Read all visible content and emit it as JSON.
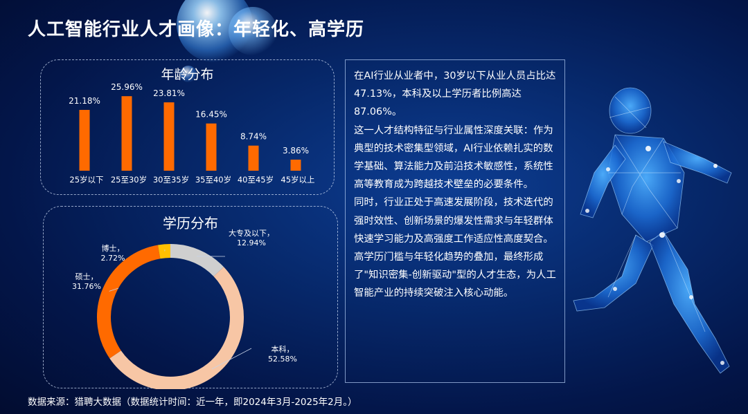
{
  "title": "人工智能行业人才画像：年轻化、高学历",
  "age_panel_title": "年龄分布",
  "edu_panel_title": "学历分布",
  "chart_data": [
    {
      "type": "bar",
      "title": "年龄分布",
      "categories": [
        "25岁以下",
        "25至30岁",
        "30至35岁",
        "35至40岁",
        "40至45岁",
        "45岁以上"
      ],
      "values": [
        21.18,
        25.96,
        23.81,
        16.45,
        8.74,
        3.86
      ],
      "labels": [
        "21.18%",
        "25.96%",
        "23.81%",
        "16.45%",
        "8.74%",
        "3.86%"
      ],
      "ylim": [
        0,
        26
      ],
      "bar_color": "#ff6a00",
      "grid": false
    },
    {
      "type": "pie",
      "title": "学历分布",
      "donut": true,
      "slices": [
        {
          "name": "大专及以下",
          "value": 12.94,
          "label": "12.94%",
          "color": "#cfcfcf"
        },
        {
          "name": "本科",
          "value": 52.58,
          "label": "52.58%",
          "color": "#f7c6a5"
        },
        {
          "name": "硕士",
          "value": 31.76,
          "label": "31.76%",
          "color": "#ff6a00"
        },
        {
          "name": "博士",
          "value": 2.72,
          "label": "2.72%",
          "color": "#ffc000"
        }
      ]
    }
  ],
  "text_box": {
    "paragraphs": [
      "在AI行业从业者中，30岁以下从业人员占比达47.13%，本科及以上学历者比例高达87.06%。",
      "这一人才结构特征与行业属性深度关联：作为典型的技术密集型领域，AI行业依赖扎实的数学基础、算法能力及前沿技术敏感性，系统性高等教育成为跨越技术壁垒的必要条件。",
      "同时，行业正处于高速发展阶段，技术迭代的强时效性、创新场景的爆发性需求与年轻群体快速学习能力及高强度工作适应性高度契合。",
      "高学历门槛与年轻化趋势的叠加，最终形成了\"知识密集-创新驱动\"型的人才生态，为人工智能产业的持续突破注入核心动能。"
    ]
  },
  "source": "数据来源：猎聘大数据（数据统计时间：近一年，即2024年3月-2025年2月。）",
  "icons": [
    "runner-figure-icon",
    "bubble-decoration-icon"
  ]
}
